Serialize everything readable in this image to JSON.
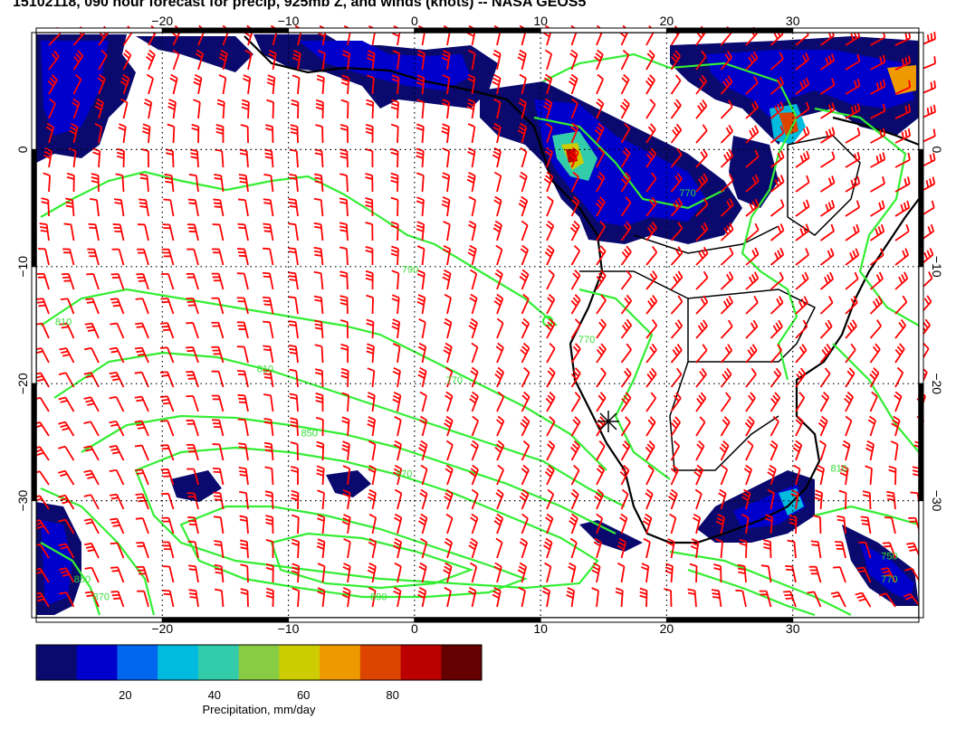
{
  "title": "15102118, 090 hour forecast for precip, 925mb Z, and winds (knots) -- NASA GEOS5",
  "map": {
    "lon_range": [
      -30,
      40
    ],
    "lat_range": [
      -40,
      10
    ],
    "lon_ticks": [
      {
        "value": -20,
        "label": "−20"
      },
      {
        "value": -10,
        "label": "−10"
      },
      {
        "value": 0,
        "label": "0"
      },
      {
        "value": 10,
        "label": "10"
      },
      {
        "value": 20,
        "label": "20"
      },
      {
        "value": 30,
        "label": "30"
      }
    ],
    "lat_ticks": [
      {
        "value": 0,
        "label": "0"
      },
      {
        "value": -10,
        "label": "−10"
      },
      {
        "value": -20,
        "label": "−20"
      },
      {
        "value": -30,
        "label": "−30"
      }
    ],
    "grid": true,
    "contour_labels": [
      {
        "text": "810",
        "lon": -28.5,
        "lat": -15
      },
      {
        "text": "810",
        "lon": -12.5,
        "lat": -19
      },
      {
        "text": "790",
        "lon": -1,
        "lat": -10.5
      },
      {
        "text": "770",
        "lon": 2.5,
        "lat": -20
      },
      {
        "text": "850",
        "lon": -9,
        "lat": -24.5
      },
      {
        "text": "870",
        "lon": -1.5,
        "lat": -28
      },
      {
        "text": "890",
        "lon": -3.5,
        "lat": -38.5
      },
      {
        "text": "850",
        "lon": -27,
        "lat": -37
      },
      {
        "text": "870",
        "lon": -25.5,
        "lat": -38.5
      },
      {
        "text": "770",
        "lon": 13,
        "lat": -16.5
      },
      {
        "text": "770",
        "lon": 21,
        "lat": -4
      },
      {
        "text": "810",
        "lon": 33,
        "lat": -27.5
      },
      {
        "text": "750",
        "lon": 37,
        "lat": -35
      },
      {
        "text": "770",
        "lon": 37,
        "lat": -37
      }
    ]
  },
  "colorbar": {
    "colors": [
      "#0a0a6e",
      "#0000cc",
      "#0066ee",
      "#00bbdd",
      "#33ccaa",
      "#88cc44",
      "#cccc00",
      "#ee9900",
      "#dd4400",
      "#bb0000",
      "#660000"
    ],
    "min": 0,
    "max": 100,
    "ticks": [
      20,
      40,
      60,
      80
    ],
    "label": "Precipitation, mm/day"
  },
  "colors": {
    "wind_barbs": "#ff0000",
    "contours": "#33ee33",
    "coastline": "#000000",
    "grid": "#000000"
  }
}
